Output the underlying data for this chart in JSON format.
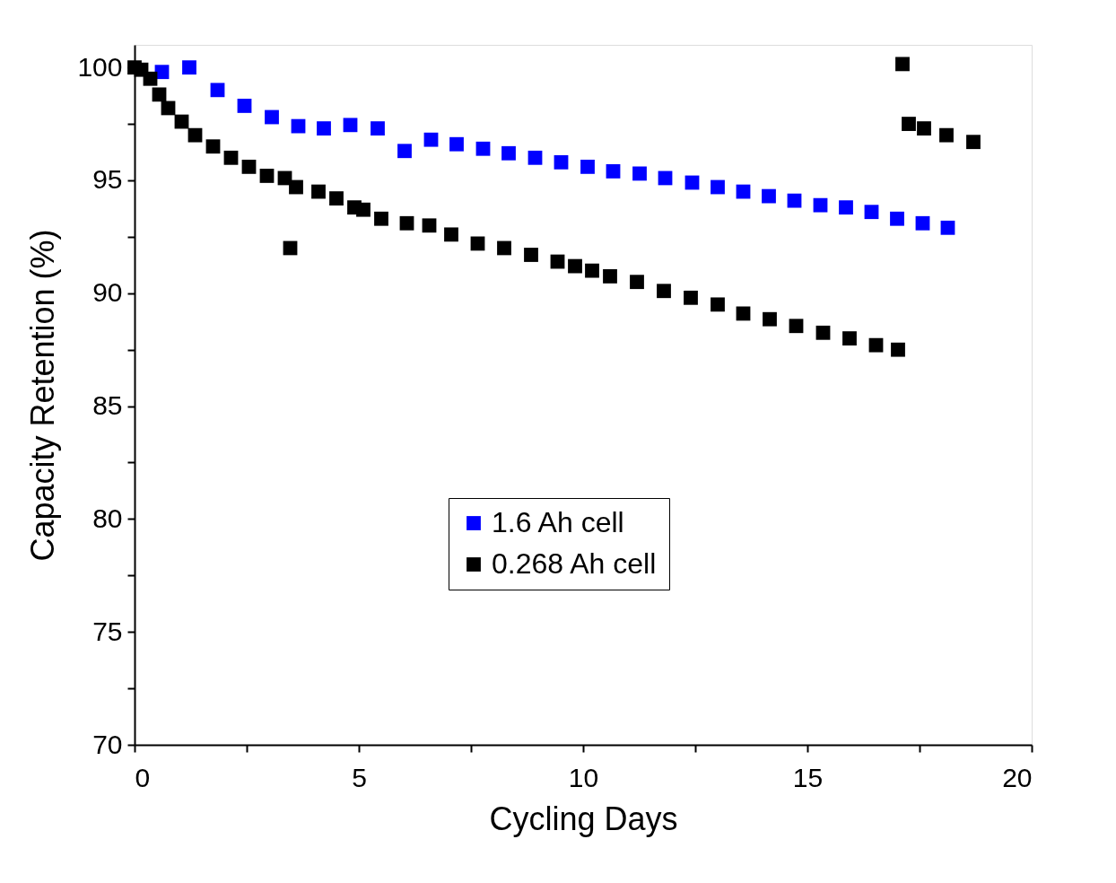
{
  "chart_data": {
    "type": "scatter",
    "xlabel": "Cycling Days",
    "ylabel": "Capacity Retention (%)",
    "xlim": [
      0,
      20
    ],
    "ylim": [
      70,
      101
    ],
    "xticks": [
      0,
      {
        "value": 2.5,
        "label": null
      },
      5,
      {
        "value": 7.5,
        "label": null
      },
      10,
      {
        "value": 12.5,
        "label": null
      },
      15,
      {
        "value": 17.5,
        "label": null
      },
      20
    ],
    "yticks": [
      70,
      {
        "value": 72.5,
        "label": null
      },
      75,
      {
        "value": 77.5,
        "label": null
      },
      80,
      {
        "value": 82.5,
        "label": null
      },
      85,
      {
        "value": 87.5,
        "label": null
      },
      90,
      {
        "value": 92.5,
        "label": null
      },
      95,
      {
        "value": 97.5,
        "label": null
      },
      100
    ],
    "grid": false,
    "legend": "bottom",
    "marker": "square",
    "series": [
      {
        "name": "1.6 Ah cell",
        "color": "#0000ff",
        "x": [
          0.61,
          1.22,
          1.85,
          2.45,
          3.06,
          3.65,
          4.22,
          4.81,
          5.42,
          6.02,
          6.61,
          7.18,
          7.77,
          8.34,
          8.93,
          9.51,
          10.1,
          10.67,
          11.26,
          11.83,
          12.43,
          13.0,
          13.57,
          14.14,
          14.71,
          15.29,
          15.86,
          16.43,
          17.0,
          17.57,
          18.13
        ],
        "values": [
          99.8,
          100,
          99.0,
          98.3,
          97.8,
          97.4,
          97.3,
          97.45,
          97.3,
          96.3,
          96.8,
          96.6,
          96.4,
          96.2,
          96.0,
          95.8,
          95.6,
          95.4,
          95.3,
          95.1,
          94.9,
          94.7,
          94.5,
          94.3,
          94.1,
          93.9,
          93.8,
          93.6,
          93.3,
          93.1,
          92.9
        ]
      },
      {
        "name": "0.268 Ah cell",
        "color": "#000000",
        "x": [
          0,
          0.15,
          0.35,
          0.55,
          0.75,
          1.05,
          1.35,
          1.75,
          2.15,
          2.55,
          2.95,
          3.35,
          3.47,
          3.6,
          4.1,
          4.5,
          4.9,
          5.1,
          5.5,
          6.07,
          6.57,
          7.06,
          7.65,
          8.24,
          8.84,
          9.43,
          9.82,
          10.2,
          10.6,
          11.2,
          11.8,
          12.4,
          13.0,
          13.57,
          14.16,
          14.75,
          15.35,
          15.94,
          16.53,
          17.02,
          17.12,
          17.26,
          17.6,
          18.1,
          18.7
        ],
        "values": [
          100,
          99.9,
          99.5,
          98.8,
          98.2,
          97.6,
          97.0,
          96.5,
          96.0,
          95.6,
          95.2,
          95.1,
          92.0,
          94.7,
          94.5,
          94.2,
          93.8,
          93.7,
          93.3,
          93.1,
          93.0,
          92.6,
          92.2,
          92.0,
          91.7,
          91.4,
          91.2,
          91.0,
          90.75,
          90.5,
          90.1,
          89.8,
          89.5,
          89.1,
          88.85,
          88.55,
          88.25,
          88.0,
          87.7,
          87.5,
          100.15,
          97.5,
          97.3,
          97.0,
          96.7
        ]
      }
    ]
  }
}
